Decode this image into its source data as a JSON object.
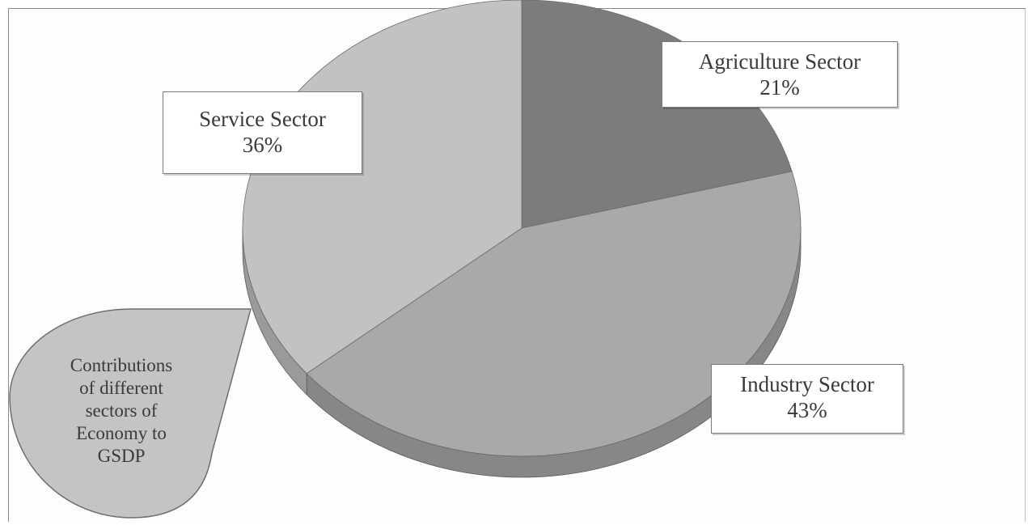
{
  "chart_data": {
    "type": "pie",
    "categories": [
      "Agriculture Sector",
      "Industry Sector",
      "Service Sector"
    ],
    "values": [
      21,
      43,
      36
    ],
    "unit": "%",
    "data_labels": [
      {
        "name": "Agriculture Sector",
        "value": "21%"
      },
      {
        "name": "Industry Sector",
        "value": "43%"
      },
      {
        "name": "Service Sector",
        "value": "36%"
      }
    ],
    "legend": "none",
    "style": "3d-exploded"
  },
  "colors": {
    "agriculture_top": "#7c7c7c",
    "agriculture_side": "#5e5e5e",
    "industry_top": "#a9a9a9",
    "industry_side": "#878787",
    "service_top": "#c2c2c2",
    "service_side": "#9a9a9a",
    "callout_fill": "#c4c4c4"
  },
  "callout": {
    "lines": [
      "Contributions",
      "of different",
      "sectors of",
      "Economy to",
      "GSDP"
    ]
  }
}
